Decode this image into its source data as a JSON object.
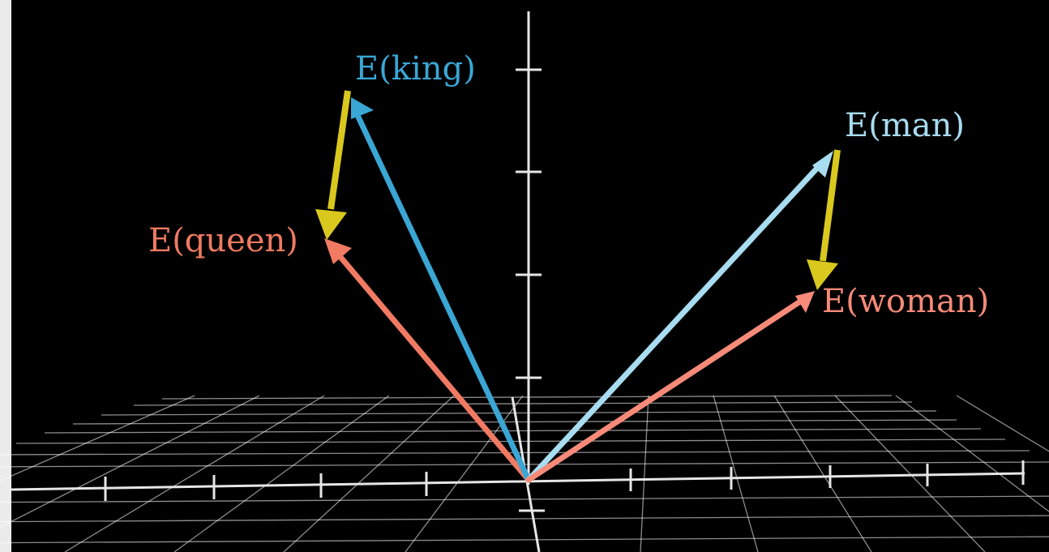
{
  "scene": {
    "background": "#000000",
    "grid_color": "#ffffff",
    "axis_color": "#e6e6e6"
  },
  "vectors": [
    {
      "id": "king",
      "label": "E(king)",
      "color": "#3aa6d4"
    },
    {
      "id": "queen",
      "label": "E(queen)",
      "color": "#f07a62"
    },
    {
      "id": "man",
      "label": "E(man)",
      "color": "#a8dcf0"
    },
    {
      "id": "woman",
      "label": "E(woman)",
      "color": "#f78a78"
    }
  ],
  "difference_arrows": [
    {
      "id": "king-to-queen",
      "from": "king",
      "to": "queen",
      "color": "#d9c81e"
    },
    {
      "id": "man-to-woman",
      "from": "man",
      "to": "woman",
      "color": "#d9c81e"
    }
  ]
}
